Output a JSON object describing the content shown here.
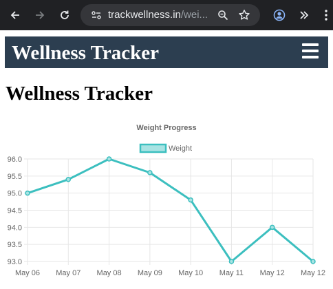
{
  "browser": {
    "url_host": "trackwellness.in",
    "url_path": "/wei..."
  },
  "site": {
    "brand": "Wellness Tracker"
  },
  "page": {
    "title": "Wellness Tracker"
  },
  "colors": {
    "header_bg": "#2c3e50",
    "series_line": "#3cbfbf",
    "series_fill": "#a8e3e3"
  },
  "chart_data": {
    "type": "line",
    "title": "Weight Progress",
    "categories": [
      "May 06",
      "May 07",
      "May 08",
      "May 09",
      "May 10",
      "May 11",
      "May 12",
      "May 12"
    ],
    "series": [
      {
        "name": "Weight",
        "values": [
          95.0,
          95.4,
          96.0,
          95.6,
          94.8,
          93.0,
          94.0,
          93.0
        ]
      }
    ],
    "ylim": [
      93.0,
      96.0
    ],
    "yticks": [
      "96.0",
      "95.5",
      "95.0",
      "94.5",
      "94.0",
      "93.5",
      "93.0"
    ],
    "legend": "top",
    "grid": true,
    "xlabel": "",
    "ylabel": ""
  }
}
